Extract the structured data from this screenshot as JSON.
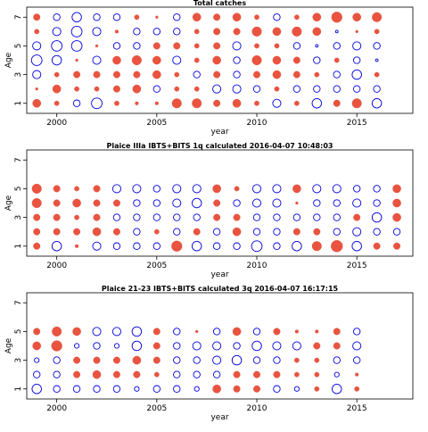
{
  "colors": {
    "positive": "#e8543f",
    "negative": "#0000dd",
    "axis": "#000000"
  },
  "chart_data": [
    {
      "type": "bubble",
      "title": "Total catches",
      "xlabel": "year",
      "ylabel": "Age",
      "xlim": [
        1998.5,
        2017.8
      ],
      "ylim": [
        0.3,
        7.7
      ],
      "xticks": [
        2000,
        2005,
        2010,
        2015
      ],
      "yticks": [
        1,
        3,
        5,
        7
      ],
      "years": [
        1999,
        2000,
        2001,
        2002,
        2003,
        2004,
        2005,
        2006,
        2007,
        2008,
        2009,
        2010,
        2011,
        2012,
        2013,
        2014,
        2015,
        2016
      ],
      "ages": [
        1,
        2,
        3,
        4,
        5,
        6,
        7
      ],
      "residuals": [
        [
          3,
          1,
          -2,
          -5,
          1,
          0.5,
          0.5,
          4,
          4,
          2,
          3,
          1,
          -3,
          1,
          -4,
          2,
          4,
          -4
        ],
        [
          0.3,
          3,
          1,
          1,
          2,
          3,
          -2,
          1,
          1,
          -3,
          -3,
          -2,
          1,
          -2,
          -2,
          -2,
          -2,
          -2
        ],
        [
          -3,
          1,
          2,
          2,
          2,
          2,
          3,
          1,
          -2,
          2,
          -2,
          2,
          3,
          2,
          1,
          -2,
          -4,
          1
        ],
        [
          -5,
          -4,
          0.3,
          -3,
          3,
          4,
          3,
          -3,
          1,
          3,
          -2,
          4,
          3,
          2,
          -2,
          1,
          -2,
          -0.3
        ],
        [
          -3,
          -5,
          -5,
          0.3,
          -2,
          -2,
          2,
          2,
          1,
          2,
          -3,
          1,
          1,
          -2,
          -0.3,
          -2,
          -3,
          -2
        ],
        [
          1,
          -3,
          -5,
          -3,
          0.5,
          -2,
          -2,
          -2,
          1,
          2,
          2,
          4,
          3,
          4,
          3,
          -0.3,
          0.3,
          1
        ],
        [
          2,
          -2,
          -4,
          -2,
          -2,
          1,
          0.3,
          -2,
          3,
          2,
          3,
          1,
          -2,
          1,
          3,
          5,
          3,
          4
        ]
      ]
    },
    {
      "type": "bubble",
      "title": "Plaice IIIa IBTS+BITS 1q calculated 2016-04-07 10:48:03",
      "xlabel": "year",
      "ylabel": "Age",
      "xlim": [
        1998.5,
        2017.8
      ],
      "ylim": [
        0.3,
        7.7
      ],
      "xticks": [
        2000,
        2005,
        2010,
        2015
      ],
      "yticks": [
        1,
        3,
        5,
        7
      ],
      "years": [
        1999,
        2000,
        2001,
        2002,
        2003,
        2004,
        2005,
        2006,
        2007,
        2008,
        2009,
        2010,
        2011,
        2012,
        2013,
        2014,
        2015,
        2016,
        2017
      ],
      "ages": [
        1,
        2,
        3,
        4,
        5,
        6,
        7
      ],
      "residuals": [
        [
          2,
          -4,
          0.5,
          -3,
          -2,
          -2,
          -2,
          5,
          -4,
          -2,
          -2,
          -5,
          -2,
          -4,
          4,
          6,
          -4,
          2,
          2
        ],
        [
          2,
          2,
          2,
          3,
          2,
          -2,
          1,
          -2,
          2,
          -2,
          3,
          -2,
          -2,
          2,
          2,
          -2,
          -3,
          -2,
          -2
        ],
        [
          2,
          2,
          1,
          2,
          -2,
          -2,
          -2,
          -2,
          -2,
          2,
          2,
          -2,
          -2,
          -2,
          -2,
          -2,
          2,
          -4,
          3
        ],
        [
          4,
          2,
          3,
          2,
          2,
          -2,
          -2,
          -3,
          -4,
          2,
          -2,
          -3,
          -3,
          0.3,
          -2,
          -2,
          -3,
          -2,
          3
        ],
        [
          4,
          2,
          1,
          2,
          -3,
          -3,
          -2,
          -3,
          -3,
          3,
          1,
          -3,
          -3,
          3,
          -3,
          -3,
          -2,
          -2,
          3
        ],
        [
          0,
          0,
          0,
          0,
          0,
          0,
          0,
          0,
          0,
          0,
          0,
          0,
          0,
          0,
          0,
          0,
          0,
          0,
          0
        ],
        [
          0,
          0,
          0,
          0,
          0,
          0,
          0,
          0,
          0,
          0,
          0,
          0,
          0,
          0,
          0,
          0,
          0,
          0,
          0
        ]
      ]
    },
    {
      "type": "bubble",
      "title": "Plaice 21-23 IBTS+BITS calculated 3q 2016-04-07 16:17:15",
      "xlabel": "year",
      "ylabel": "Age",
      "xlim": [
        1998.5,
        2017.8
      ],
      "ylim": [
        0.3,
        7.7
      ],
      "xticks": [
        2000,
        2005,
        2010,
        2015
      ],
      "yticks": [
        1,
        3,
        5,
        7
      ],
      "years": [
        1999,
        2000,
        2001,
        2002,
        2003,
        2004,
        2005,
        2006,
        2007,
        2008,
        2009,
        2010,
        2011,
        2012,
        2013,
        2014,
        2015
      ],
      "ages": [
        1,
        2,
        3,
        4,
        5,
        6,
        7
      ],
      "residuals": [
        [
          -4,
          -2,
          -2,
          -2,
          -2,
          -1,
          -2,
          -2,
          -1,
          3,
          2,
          2,
          -2,
          -1,
          1,
          -4,
          1
        ],
        [
          -2,
          -2,
          2,
          3,
          2,
          2,
          1,
          -2,
          -2,
          -2,
          2,
          2,
          2,
          1,
          1,
          -1,
          0.5
        ],
        [
          -1,
          -2,
          2,
          2,
          2,
          3,
          2,
          -2,
          -2,
          -3,
          -4,
          -2,
          -2,
          1,
          1,
          -2,
          -2
        ],
        [
          3,
          5,
          -1,
          -2,
          -1,
          -4,
          2,
          -2,
          -3,
          -3,
          -2,
          -4,
          -3,
          -3,
          2,
          2,
          -3
        ],
        [
          2,
          4,
          3,
          -3,
          -3,
          -4,
          2,
          -2,
          0.3,
          -2,
          3,
          -2,
          2,
          0.5,
          0.5,
          2,
          -2
        ],
        [
          0,
          0,
          0,
          0,
          0,
          0,
          0,
          0,
          0,
          0,
          0,
          0,
          0,
          0,
          0,
          0,
          0
        ],
        [
          0,
          0,
          0,
          0,
          0,
          0,
          0,
          0,
          0,
          0,
          0,
          0,
          0,
          0,
          0,
          0,
          0
        ]
      ]
    }
  ]
}
